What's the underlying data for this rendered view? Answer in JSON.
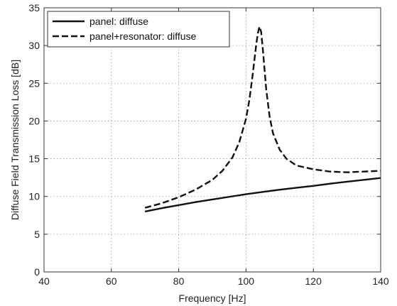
{
  "chart_data": {
    "type": "line",
    "title": "",
    "xlabel": "Frequency [Hz]",
    "ylabel": "Diffuse Field Transmission Loss [dB]",
    "xlim": [
      40,
      140
    ],
    "ylim": [
      0,
      35
    ],
    "xticks": [
      40,
      60,
      80,
      100,
      120,
      140
    ],
    "yticks": [
      0,
      5,
      10,
      15,
      20,
      25,
      30,
      35
    ],
    "xtick_labels": [
      "40",
      "60",
      "80",
      "100",
      "120",
      "140"
    ],
    "ytick_labels": [
      "0",
      "5",
      "10",
      "15",
      "20",
      "25",
      "30",
      "35"
    ],
    "grid": true,
    "legend_position": "top-left",
    "series": [
      {
        "name": "panel: diffuse",
        "style": "solid",
        "color": "#111111",
        "x": [
          70,
          75,
          80,
          85,
          90,
          95,
          100,
          105,
          110,
          115,
          120,
          125,
          130,
          135,
          140
        ],
        "y": [
          8.0,
          8.45,
          8.85,
          9.25,
          9.6,
          9.95,
          10.3,
          10.6,
          10.9,
          11.15,
          11.4,
          11.7,
          11.95,
          12.2,
          12.45
        ]
      },
      {
        "name": "panel+resonator: diffuse",
        "style": "dashed",
        "color": "#111111",
        "x": [
          70,
          75,
          80,
          85,
          90,
          93,
          96,
          98,
          100,
          101,
          102,
          103,
          103.5,
          104,
          104.5,
          105,
          106,
          107,
          108,
          110,
          112,
          115,
          120,
          125,
          130,
          135,
          140
        ],
        "y": [
          8.5,
          9.1,
          9.9,
          10.9,
          12.2,
          13.4,
          15.2,
          17.2,
          20.3,
          22.8,
          26.2,
          30.0,
          31.6,
          32.5,
          31.8,
          29.5,
          24.2,
          20.6,
          18.4,
          16.2,
          15.0,
          14.1,
          13.6,
          13.3,
          13.2,
          13.3,
          13.4
        ]
      }
    ]
  }
}
